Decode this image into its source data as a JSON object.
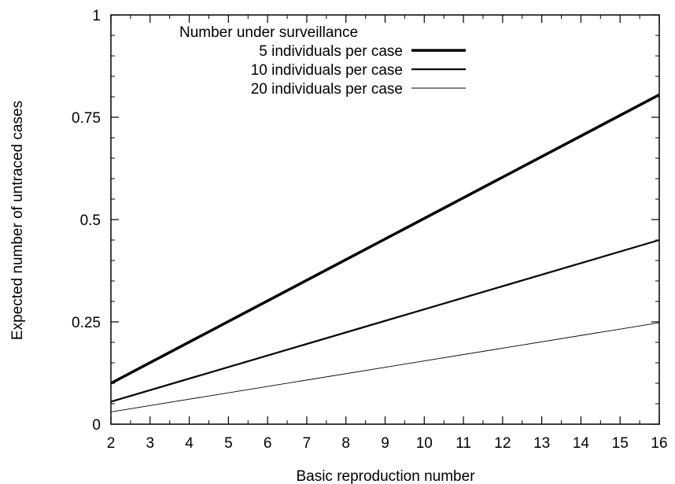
{
  "chart_data": {
    "type": "line",
    "title": "",
    "xlabel": "Basic reproduction number",
    "ylabel": "Expected number of untraced cases",
    "xlim": [
      2,
      16
    ],
    "ylim": [
      0,
      1
    ],
    "x_ticks": [
      2,
      3,
      4,
      5,
      6,
      7,
      8,
      9,
      10,
      11,
      12,
      13,
      14,
      15,
      16
    ],
    "x_tick_labels": [
      "2",
      "3",
      "4",
      "5",
      "6",
      "7",
      "8",
      "9",
      "10",
      "11",
      "12",
      "13",
      "14",
      "15",
      "16"
    ],
    "y_ticks": [
      0,
      0.25,
      0.5,
      0.75,
      1
    ],
    "y_tick_labels": [
      "0",
      "0.25",
      "0.5",
      "0.75",
      "1"
    ],
    "grid": false,
    "legend": {
      "title": "Number under surveillance",
      "placement": "top-left"
    },
    "series": [
      {
        "name": "5 individuals per case",
        "x": [
          2,
          16
        ],
        "y": [
          0.1,
          0.805
        ],
        "line_weight": "thick"
      },
      {
        "name": "10 individuals per case",
        "x": [
          2,
          16
        ],
        "y": [
          0.055,
          0.45
        ],
        "line_weight": "medium"
      },
      {
        "name": "20 individuals per case",
        "x": [
          2,
          16
        ],
        "y": [
          0.03,
          0.248
        ],
        "line_weight": "thin"
      }
    ]
  }
}
